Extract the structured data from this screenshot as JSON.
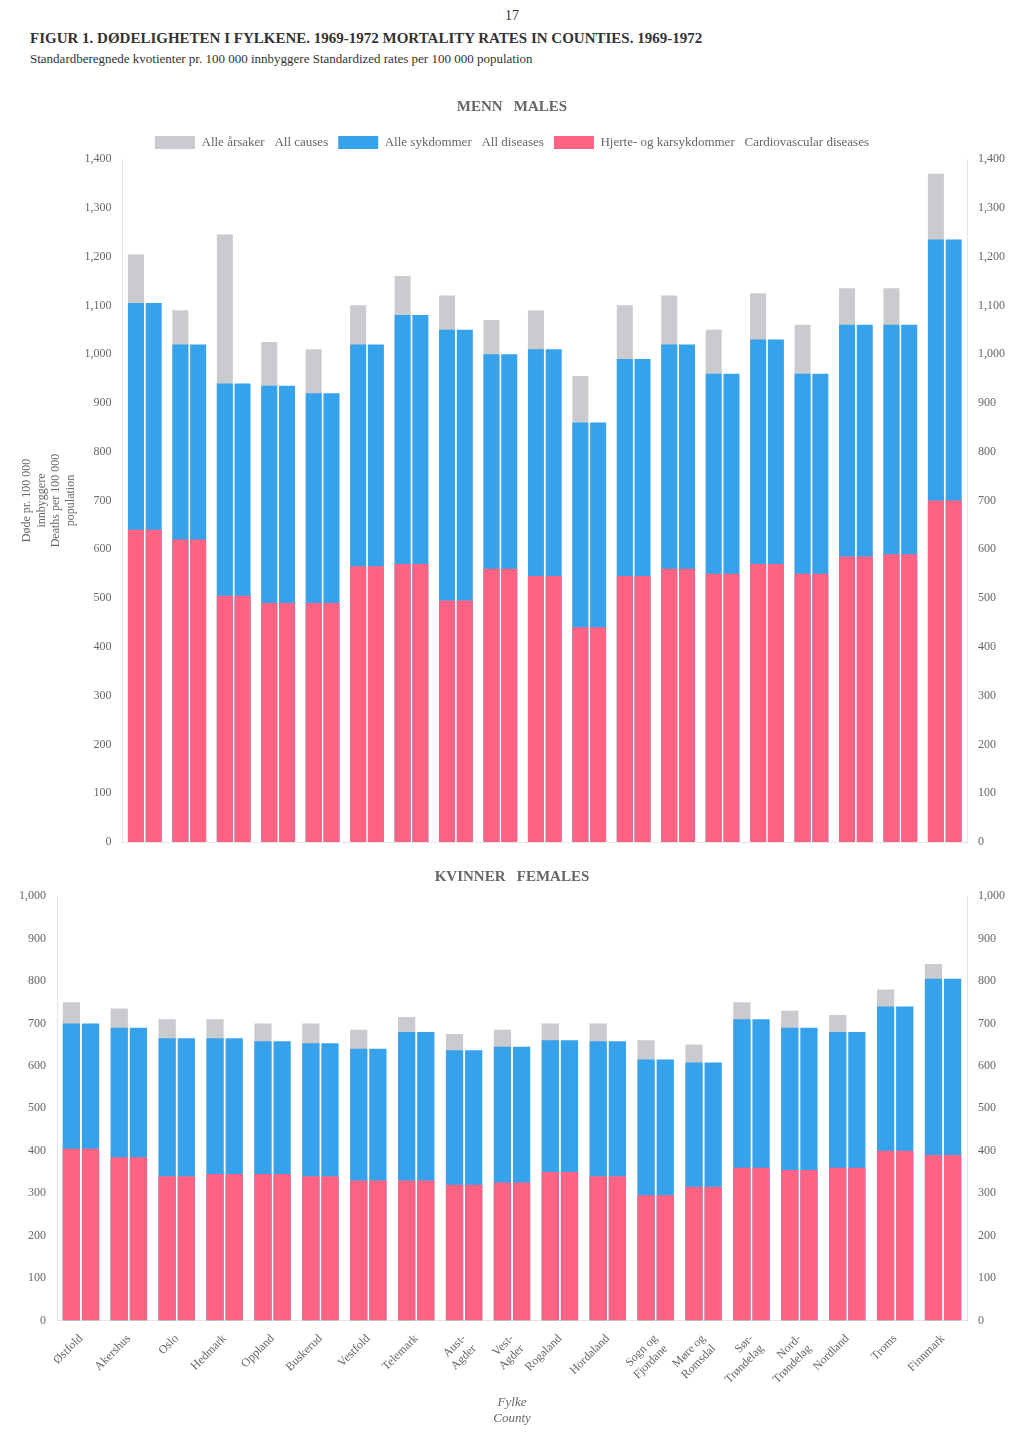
{
  "title": "FIGUR 1.    DØDELIGHETEN I FYLKENE. 1969-1972   MORTALITY RATES IN COUNTIES. 1969-1972",
  "subtitle": "Standardberegnede kvotienter pr. 100 000 innbyggere   Standardized rates per 100 000 population",
  "annotations": [
    "17"
  ],
  "chart_data": [
    {
      "type": "bar",
      "title": "MENN   MALES",
      "ylabel": "Døde pr. 100 000\ninnbyggere\nDeaths per 100 000\npopulation",
      "categories": [
        "Østfold",
        "Akershus",
        "Oslo",
        "Hedmark",
        "Oppland",
        "Buskerud",
        "Vestfold",
        "Telemark",
        "Aust-\nAgder",
        "Vest-\nAgder",
        "Rogaland",
        "Hordaland",
        "Sogn og\nFjordane",
        "Møre og\nRomsdal",
        "Sør-\nTrøndelag",
        "Nord-\nTrøndelag",
        "Nordland",
        "Troms",
        "Finnmark"
      ],
      "series": [
        {
          "name": "Alle årsaker   All causes",
          "color": "#c9cbcf",
          "values": [
            1205,
            1090,
            1245,
            1025,
            1010,
            1100,
            1160,
            1120,
            1070,
            1090,
            955,
            1100,
            1120,
            1050,
            1125,
            1060,
            1135,
            1135,
            1370
          ]
        },
        {
          "name": "Alle sykdommer   All diseases",
          "color": "#36a2eb",
          "values": [
            1105,
            1020,
            940,
            935,
            920,
            1020,
            1080,
            1050,
            1000,
            1010,
            860,
            990,
            1020,
            960,
            1030,
            960,
            1060,
            1060,
            1235
          ]
        },
        {
          "name": "Hjerte- og karsykdommer   Cardiovascular diseases",
          "color": "#ff6384",
          "values": [
            640,
            620,
            505,
            490,
            490,
            565,
            570,
            495,
            560,
            545,
            440,
            545,
            560,
            550,
            570,
            550,
            585,
            590,
            700
          ]
        }
      ],
      "ylim": [
        0,
        1400
      ],
      "yticks": [
        0,
        100,
        200,
        300,
        400,
        500,
        600,
        700,
        800,
        900,
        1000,
        1100,
        1200,
        1300,
        1400
      ],
      "y2lim": [
        0,
        1400
      ],
      "y2ticks": [
        0,
        100,
        200,
        300,
        400,
        500,
        600,
        700,
        800,
        900,
        1000,
        1100,
        1200,
        1300,
        1400
      ],
      "grid": false,
      "legend": "top",
      "tick_labels": "y"
    },
    {
      "type": "bar",
      "title": "KVINNER   FEMALES",
      "xlabel": "Fylke\nCounty",
      "categories": [
        "Østfold",
        "Akershus",
        "Oslo",
        "Hedmark",
        "Oppland",
        "Buskerud",
        "Vestfold",
        "Telemark",
        "Aust-\nAgder",
        "Vest-\nAgder",
        "Rogaland",
        "Hordaland",
        "Sogn og\nFjordane",
        "Møre og\nRomsdal",
        "Sør-\nTrøndelag",
        "Nord-\nTrøndelag",
        "Nordland",
        "Troms",
        "Finnmark"
      ],
      "series": [
        {
          "name": "Alle årsaker   All causes",
          "color": "#c9cbcf",
          "values": [
            750,
            735,
            710,
            710,
            700,
            700,
            685,
            715,
            675,
            685,
            700,
            700,
            660,
            650,
            750,
            730,
            720,
            780,
            840
          ]
        },
        {
          "name": "Alle sykdommer   All diseases",
          "color": "#36a2eb",
          "values": [
            700,
            690,
            665,
            665,
            658,
            653,
            640,
            680,
            637,
            645,
            660,
            658,
            615,
            608,
            710,
            690,
            680,
            740,
            805
          ]
        },
        {
          "name": "Hjerte- og karsykdommer   Cardiovascular diseases",
          "color": "#ff6384",
          "values": [
            405,
            385,
            340,
            345,
            345,
            340,
            330,
            330,
            320,
            325,
            350,
            340,
            295,
            315,
            360,
            355,
            360,
            400,
            390
          ]
        }
      ],
      "ylim": [
        0,
        1000
      ],
      "yticks": [
        0,
        100,
        200,
        300,
        400,
        500,
        600,
        700,
        800,
        900,
        1000
      ],
      "y2lim": [
        0,
        1000
      ],
      "y2ticks": [
        0,
        100,
        200,
        300,
        400,
        500,
        600,
        700,
        800,
        900,
        1000
      ],
      "grid": false
    }
  ]
}
